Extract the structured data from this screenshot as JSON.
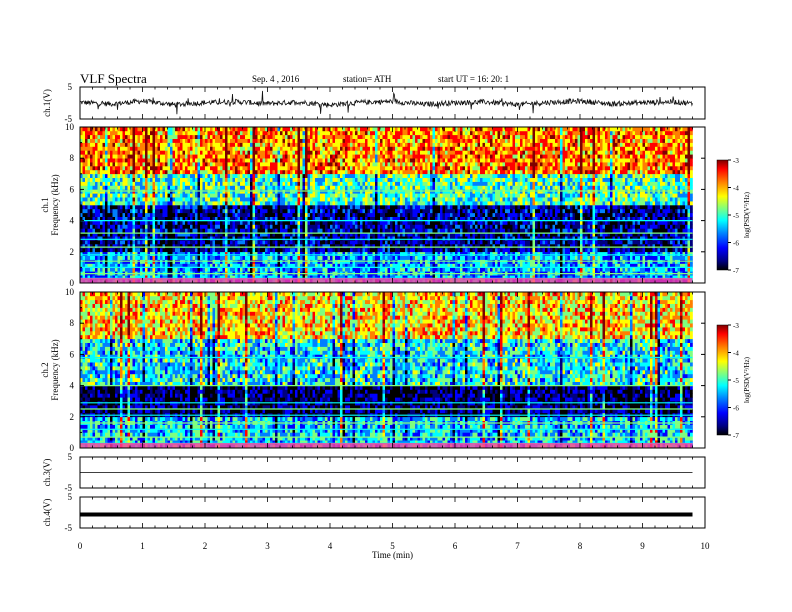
{
  "header": {
    "title": "VLF  Spectra",
    "date": "Sep. 4  , 2016",
    "station": "station= ATH",
    "start": "start  UT  =    16: 20: 1"
  },
  "colors": {
    "spectrum": [
      "#000000",
      "#00007f",
      "#0000ff",
      "#007fff",
      "#00ffff",
      "#7fff7f",
      "#ffff00",
      "#ff7f00",
      "#ff0000",
      "#7f0000"
    ],
    "trace": "#111111",
    "axis": "#000000"
  },
  "chart_data": [
    {
      "type": "line",
      "id": "ch1",
      "ylabel": "ch.1(V)",
      "ylim": [
        -5,
        5
      ],
      "yticks": [
        "5",
        "-5"
      ],
      "x": [
        0,
        0.5,
        1,
        1.5,
        2,
        2.5,
        3,
        3.5,
        4,
        4.5,
        5,
        5.5,
        6,
        6.5,
        7,
        7.5,
        8,
        8.5,
        9,
        9.5,
        9.8
      ],
      "values": [
        0.2,
        -0.3,
        0.6,
        -0.5,
        0.1,
        0.4,
        -0.2,
        0.3,
        -0.6,
        0.2,
        0.5,
        -0.4,
        0.1,
        0.3,
        -0.5,
        0.2,
        0.6,
        -0.3,
        0.1,
        0.4,
        -0.2
      ],
      "style": "dense noisy waveform with spikes"
    },
    {
      "type": "heatmap",
      "id": "ch1-spectrogram",
      "ylabel": "ch.1\nFrequency  (kHz)",
      "ylim": [
        0,
        10
      ],
      "yticks": [
        "0",
        "2",
        "4",
        "6",
        "8",
        "10"
      ],
      "xlim": [
        0,
        9.8
      ],
      "colorbar": {
        "label": "log(PSD(V²/Hz)",
        "range": [
          -7,
          -3
        ],
        "ticks": [
          "-3",
          "-4",
          "-5",
          "-6",
          "-7"
        ]
      },
      "freq_bands_khz": [
        0.3,
        0.6,
        1.0,
        1.4,
        1.8,
        2.3,
        2.8,
        3.2,
        4.0,
        5.9
      ],
      "description_levels": {
        "0-2kHz": -5.5,
        "2-5kHz": -6.3,
        "5-7kHz": -5.0,
        "7-10kHz": -4.0
      }
    },
    {
      "type": "heatmap",
      "id": "ch2-spectrogram",
      "ylabel": "ch.2\nFrequency  (kHz)",
      "ylim": [
        0,
        10
      ],
      "yticks": [
        "0",
        "2",
        "4",
        "6",
        "8",
        "10"
      ],
      "xlim": [
        0,
        9.8
      ],
      "colorbar": {
        "label": "log(PSD(V²/Hz)",
        "range": [
          -7,
          -3
        ],
        "ticks": [
          "-3",
          "-4",
          "-5",
          "-6",
          "-7"
        ]
      },
      "freq_bands_khz": [
        0.3,
        0.7,
        1.2,
        1.6,
        2.1,
        2.5,
        2.9,
        4.0,
        5.8
      ],
      "description_levels": {
        "0-2kHz": -5.3,
        "2-4kHz": -6.5,
        "4-7kHz": -5.2,
        "7-10kHz": -4.3
      }
    },
    {
      "type": "line",
      "id": "ch3",
      "ylabel": "ch.3(V)",
      "ylim": [
        -5,
        5
      ],
      "yticks": [
        "5",
        "-5"
      ],
      "x": [
        0,
        9.8
      ],
      "values": [
        0,
        0
      ],
      "style": "flat thin line"
    },
    {
      "type": "line",
      "id": "ch4",
      "ylabel": "ch.4(V)",
      "ylim": [
        -5,
        5
      ],
      "yticks": [
        "5",
        "-5"
      ],
      "x": [
        0,
        9.8
      ],
      "values": [
        0,
        0
      ],
      "style": "flat thick line"
    }
  ],
  "xaxis": {
    "label": "Time  (min)",
    "xlim": [
      0,
      10
    ],
    "ticks": [
      "0",
      "1",
      "2",
      "3",
      "4",
      "5",
      "6",
      "7",
      "8",
      "9",
      "10"
    ]
  }
}
